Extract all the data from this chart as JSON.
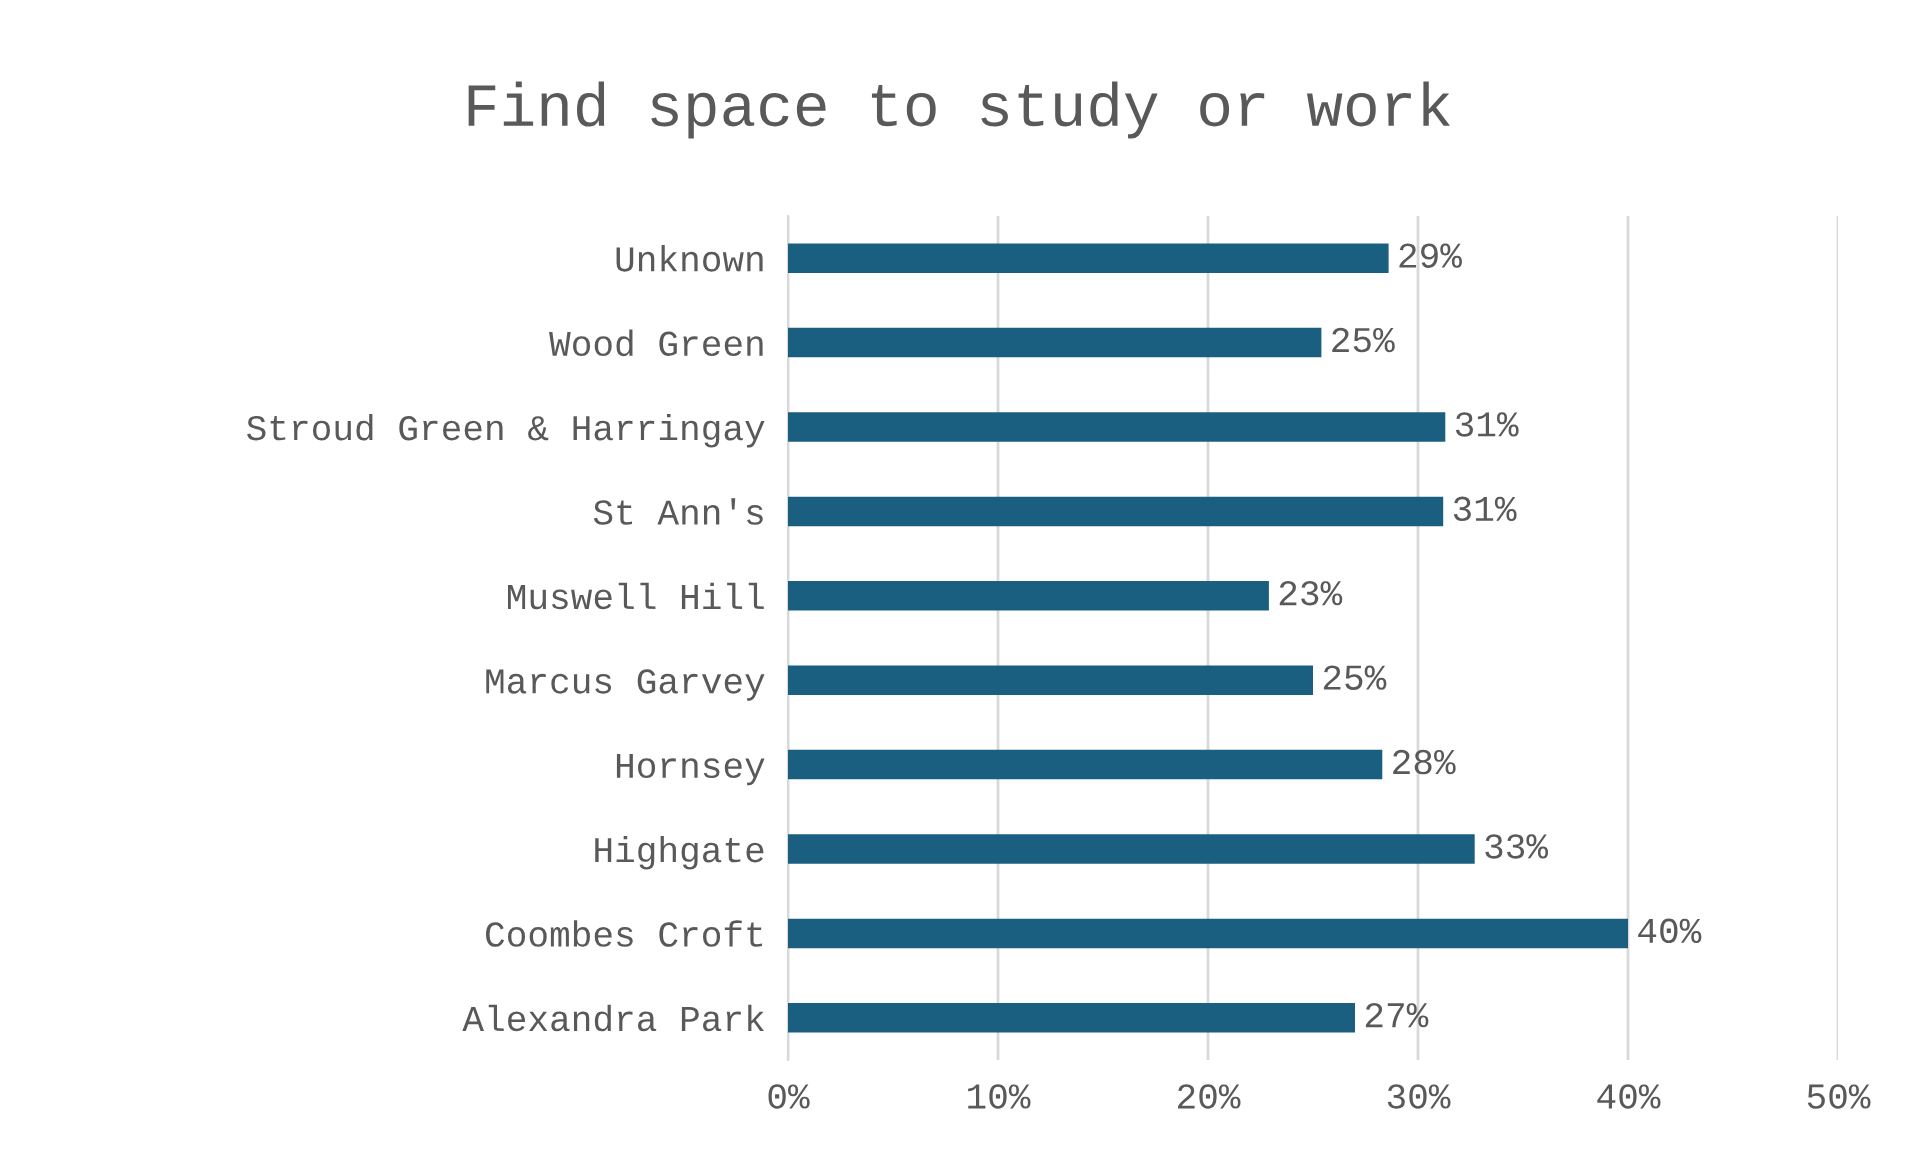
{
  "chart_data": {
    "type": "bar",
    "orientation": "horizontal",
    "title": "Find space to study or work",
    "categories": [
      "Unknown",
      "Wood Green",
      "Stroud Green & Harringay",
      "St Ann's",
      "Muswell Hill",
      "Marcus Garvey",
      "Hornsey",
      "Highgate",
      "Coombes Croft",
      "Alexandra Park"
    ],
    "values": [
      28.6,
      25.4,
      31.3,
      31.2,
      22.9,
      25.0,
      28.3,
      32.7,
      40.0,
      27.0
    ],
    "value_labels": [
      "29%",
      "25%",
      "31%",
      "31%",
      "23%",
      "25%",
      "28%",
      "33%",
      "40%",
      "27%"
    ],
    "color": "#1a5f80",
    "xlim": [
      0,
      50
    ],
    "xticks": [
      {
        "value": 0,
        "label": "0%"
      },
      {
        "value": 10,
        "label": "10%"
      },
      {
        "value": 20,
        "label": "20%"
      },
      {
        "value": 30,
        "label": "30%"
      },
      {
        "value": 40,
        "label": "40%"
      },
      {
        "value": 50,
        "label": "50%"
      }
    ],
    "grid": "x"
  }
}
